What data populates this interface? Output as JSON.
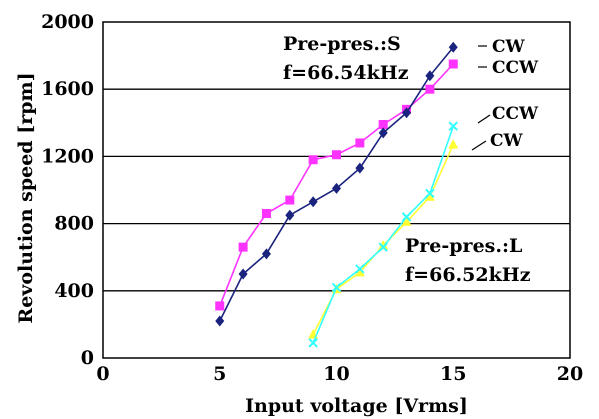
{
  "chart_data": {
    "type": "line",
    "title": "",
    "xlabel": "Input voltage  [Vrms]",
    "ylabel": "Revolution speed  [rpm]",
    "xlim": [
      0,
      20
    ],
    "ylim": [
      0,
      2000
    ],
    "xticks": [
      "0",
      "5",
      "10",
      "15",
      "20"
    ],
    "yticks": [
      "0",
      "400",
      "800",
      "1200",
      "1600",
      "2000"
    ],
    "grid": "horizontal",
    "series": [
      {
        "name": "CW",
        "group": "S",
        "color": "#1a237e",
        "marker": "diamond",
        "x": [
          5,
          6,
          7,
          8,
          9,
          10,
          11,
          12,
          13,
          14,
          15
        ],
        "y": [
          220,
          500,
          620,
          850,
          930,
          1010,
          1130,
          1340,
          1460,
          1680,
          1850
        ]
      },
      {
        "name": "CCW",
        "group": "S",
        "color": "#ff33ff",
        "marker": "square",
        "x": [
          5,
          6,
          7,
          8,
          9,
          10,
          11,
          12,
          13,
          14,
          15
        ],
        "y": [
          310,
          660,
          860,
          940,
          1180,
          1210,
          1280,
          1390,
          1480,
          1600,
          1750
        ]
      },
      {
        "name": "CCW",
        "group": "L",
        "color": "#33ffff",
        "marker": "x",
        "x": [
          9,
          10,
          11,
          12,
          13,
          14,
          15
        ],
        "y": [
          90,
          420,
          530,
          660,
          840,
          980,
          1380
        ]
      },
      {
        "name": "CW",
        "group": "L",
        "color": "#ffff33",
        "marker": "triangle",
        "x": [
          9,
          10,
          11,
          12,
          13,
          14,
          15
        ],
        "y": [
          140,
          410,
          510,
          670,
          810,
          960,
          1270
        ]
      }
    ],
    "annotations": {
      "group_s": [
        "Pre-pres.:S",
        "f=66.54kHz"
      ],
      "group_l": [
        "Pre-pres.:L",
        "f=66.52kHz"
      ]
    },
    "legend_labels": {
      "s_cw": "CW",
      "s_ccw": "CCW",
      "l_ccw": "CCW",
      "l_cw": "CW"
    }
  }
}
